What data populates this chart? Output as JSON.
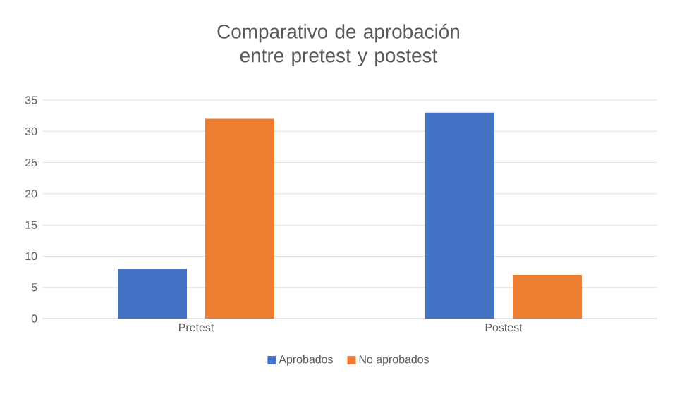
{
  "chart_data": {
    "type": "bar",
    "title": "Comparativo de aprobación entre pretest y postest",
    "categories": [
      "Pretest",
      "Postest"
    ],
    "series": [
      {
        "name": "Aprobados",
        "color": "#4472c4",
        "values": [
          8,
          33
        ]
      },
      {
        "name": "No aprobados",
        "color": "#ed7d31",
        "values": [
          32,
          7
        ]
      }
    ],
    "ylim": [
      0,
      35
    ],
    "yticks": [
      0,
      5,
      10,
      15,
      20,
      25,
      30,
      35
    ],
    "grid": "y",
    "legend": "bottom"
  }
}
